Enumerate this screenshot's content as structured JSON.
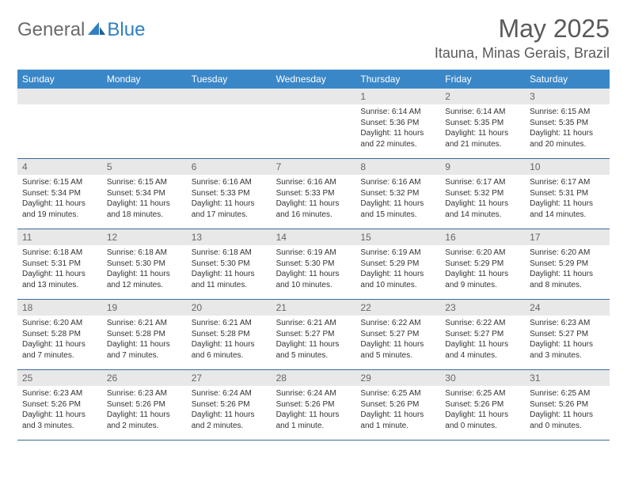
{
  "brand": {
    "part1": "General",
    "part2": "Blue"
  },
  "title": "May 2025",
  "location": "Itauna, Minas Gerais, Brazil",
  "colors": {
    "header_bg": "#3a87c8",
    "header_text": "#ffffff",
    "daynum_bg": "#e8e8e8",
    "text": "#333333",
    "rule": "#3a6a9a",
    "logo_gray": "#6b6b6b",
    "logo_blue": "#2f7fc2"
  },
  "weekdays": [
    "Sunday",
    "Monday",
    "Tuesday",
    "Wednesday",
    "Thursday",
    "Friday",
    "Saturday"
  ],
  "weeks": [
    [
      {
        "n": "",
        "sr": "",
        "ss": "",
        "dl1": "",
        "dl2": ""
      },
      {
        "n": "",
        "sr": "",
        "ss": "",
        "dl1": "",
        "dl2": ""
      },
      {
        "n": "",
        "sr": "",
        "ss": "",
        "dl1": "",
        "dl2": ""
      },
      {
        "n": "",
        "sr": "",
        "ss": "",
        "dl1": "",
        "dl2": ""
      },
      {
        "n": "1",
        "sr": "Sunrise: 6:14 AM",
        "ss": "Sunset: 5:36 PM",
        "dl1": "Daylight: 11 hours",
        "dl2": "and 22 minutes."
      },
      {
        "n": "2",
        "sr": "Sunrise: 6:14 AM",
        "ss": "Sunset: 5:35 PM",
        "dl1": "Daylight: 11 hours",
        "dl2": "and 21 minutes."
      },
      {
        "n": "3",
        "sr": "Sunrise: 6:15 AM",
        "ss": "Sunset: 5:35 PM",
        "dl1": "Daylight: 11 hours",
        "dl2": "and 20 minutes."
      }
    ],
    [
      {
        "n": "4",
        "sr": "Sunrise: 6:15 AM",
        "ss": "Sunset: 5:34 PM",
        "dl1": "Daylight: 11 hours",
        "dl2": "and 19 minutes."
      },
      {
        "n": "5",
        "sr": "Sunrise: 6:15 AM",
        "ss": "Sunset: 5:34 PM",
        "dl1": "Daylight: 11 hours",
        "dl2": "and 18 minutes."
      },
      {
        "n": "6",
        "sr": "Sunrise: 6:16 AM",
        "ss": "Sunset: 5:33 PM",
        "dl1": "Daylight: 11 hours",
        "dl2": "and 17 minutes."
      },
      {
        "n": "7",
        "sr": "Sunrise: 6:16 AM",
        "ss": "Sunset: 5:33 PM",
        "dl1": "Daylight: 11 hours",
        "dl2": "and 16 minutes."
      },
      {
        "n": "8",
        "sr": "Sunrise: 6:16 AM",
        "ss": "Sunset: 5:32 PM",
        "dl1": "Daylight: 11 hours",
        "dl2": "and 15 minutes."
      },
      {
        "n": "9",
        "sr": "Sunrise: 6:17 AM",
        "ss": "Sunset: 5:32 PM",
        "dl1": "Daylight: 11 hours",
        "dl2": "and 14 minutes."
      },
      {
        "n": "10",
        "sr": "Sunrise: 6:17 AM",
        "ss": "Sunset: 5:31 PM",
        "dl1": "Daylight: 11 hours",
        "dl2": "and 14 minutes."
      }
    ],
    [
      {
        "n": "11",
        "sr": "Sunrise: 6:18 AM",
        "ss": "Sunset: 5:31 PM",
        "dl1": "Daylight: 11 hours",
        "dl2": "and 13 minutes."
      },
      {
        "n": "12",
        "sr": "Sunrise: 6:18 AM",
        "ss": "Sunset: 5:30 PM",
        "dl1": "Daylight: 11 hours",
        "dl2": "and 12 minutes."
      },
      {
        "n": "13",
        "sr": "Sunrise: 6:18 AM",
        "ss": "Sunset: 5:30 PM",
        "dl1": "Daylight: 11 hours",
        "dl2": "and 11 minutes."
      },
      {
        "n": "14",
        "sr": "Sunrise: 6:19 AM",
        "ss": "Sunset: 5:30 PM",
        "dl1": "Daylight: 11 hours",
        "dl2": "and 10 minutes."
      },
      {
        "n": "15",
        "sr": "Sunrise: 6:19 AM",
        "ss": "Sunset: 5:29 PM",
        "dl1": "Daylight: 11 hours",
        "dl2": "and 10 minutes."
      },
      {
        "n": "16",
        "sr": "Sunrise: 6:20 AM",
        "ss": "Sunset: 5:29 PM",
        "dl1": "Daylight: 11 hours",
        "dl2": "and 9 minutes."
      },
      {
        "n": "17",
        "sr": "Sunrise: 6:20 AM",
        "ss": "Sunset: 5:29 PM",
        "dl1": "Daylight: 11 hours",
        "dl2": "and 8 minutes."
      }
    ],
    [
      {
        "n": "18",
        "sr": "Sunrise: 6:20 AM",
        "ss": "Sunset: 5:28 PM",
        "dl1": "Daylight: 11 hours",
        "dl2": "and 7 minutes."
      },
      {
        "n": "19",
        "sr": "Sunrise: 6:21 AM",
        "ss": "Sunset: 5:28 PM",
        "dl1": "Daylight: 11 hours",
        "dl2": "and 7 minutes."
      },
      {
        "n": "20",
        "sr": "Sunrise: 6:21 AM",
        "ss": "Sunset: 5:28 PM",
        "dl1": "Daylight: 11 hours",
        "dl2": "and 6 minutes."
      },
      {
        "n": "21",
        "sr": "Sunrise: 6:21 AM",
        "ss": "Sunset: 5:27 PM",
        "dl1": "Daylight: 11 hours",
        "dl2": "and 5 minutes."
      },
      {
        "n": "22",
        "sr": "Sunrise: 6:22 AM",
        "ss": "Sunset: 5:27 PM",
        "dl1": "Daylight: 11 hours",
        "dl2": "and 5 minutes."
      },
      {
        "n": "23",
        "sr": "Sunrise: 6:22 AM",
        "ss": "Sunset: 5:27 PM",
        "dl1": "Daylight: 11 hours",
        "dl2": "and 4 minutes."
      },
      {
        "n": "24",
        "sr": "Sunrise: 6:23 AM",
        "ss": "Sunset: 5:27 PM",
        "dl1": "Daylight: 11 hours",
        "dl2": "and 3 minutes."
      }
    ],
    [
      {
        "n": "25",
        "sr": "Sunrise: 6:23 AM",
        "ss": "Sunset: 5:26 PM",
        "dl1": "Daylight: 11 hours",
        "dl2": "and 3 minutes."
      },
      {
        "n": "26",
        "sr": "Sunrise: 6:23 AM",
        "ss": "Sunset: 5:26 PM",
        "dl1": "Daylight: 11 hours",
        "dl2": "and 2 minutes."
      },
      {
        "n": "27",
        "sr": "Sunrise: 6:24 AM",
        "ss": "Sunset: 5:26 PM",
        "dl1": "Daylight: 11 hours",
        "dl2": "and 2 minutes."
      },
      {
        "n": "28",
        "sr": "Sunrise: 6:24 AM",
        "ss": "Sunset: 5:26 PM",
        "dl1": "Daylight: 11 hours",
        "dl2": "and 1 minute."
      },
      {
        "n": "29",
        "sr": "Sunrise: 6:25 AM",
        "ss": "Sunset: 5:26 PM",
        "dl1": "Daylight: 11 hours",
        "dl2": "and 1 minute."
      },
      {
        "n": "30",
        "sr": "Sunrise: 6:25 AM",
        "ss": "Sunset: 5:26 PM",
        "dl1": "Daylight: 11 hours",
        "dl2": "and 0 minutes."
      },
      {
        "n": "31",
        "sr": "Sunrise: 6:25 AM",
        "ss": "Sunset: 5:26 PM",
        "dl1": "Daylight: 11 hours",
        "dl2": "and 0 minutes."
      }
    ]
  ]
}
